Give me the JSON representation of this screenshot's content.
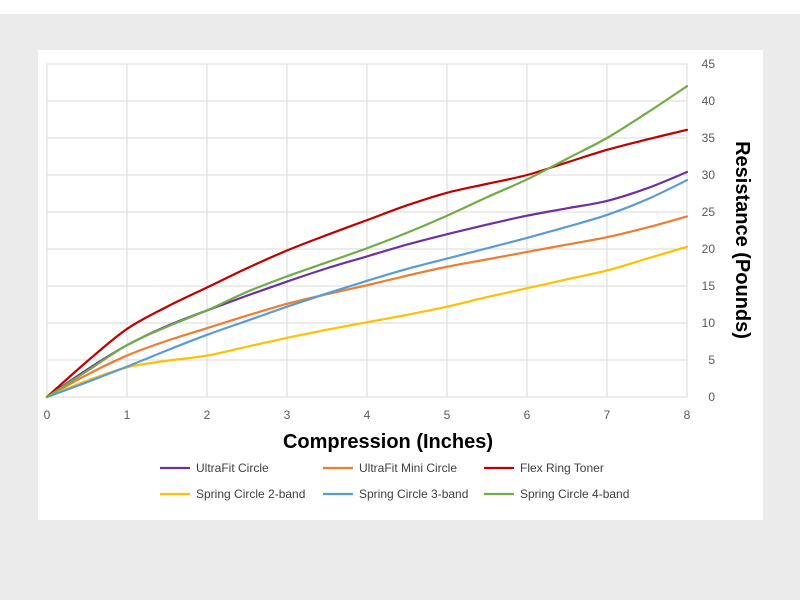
{
  "chart_data": {
    "type": "line",
    "title": "",
    "xlabel": "Compression (Inches)",
    "ylabel": "Resistance (Pounds)",
    "x": [
      0,
      0.5,
      1,
      1.5,
      2,
      2.5,
      3,
      3.5,
      4,
      4.5,
      5,
      5.5,
      6,
      6.5,
      7,
      7.5,
      8
    ],
    "xlim": [
      0,
      8
    ],
    "ylim": [
      0,
      45
    ],
    "x_ticks": [
      "0",
      "1",
      "2",
      "3",
      "4",
      "5",
      "6",
      "7",
      "8"
    ],
    "y_ticks": [
      "0",
      "5",
      "10",
      "15",
      "20",
      "25",
      "30",
      "35",
      "40",
      "45"
    ],
    "y_axis_side": "right",
    "grid": true,
    "legend_position": "bottom",
    "series": [
      {
        "name": "UltraFit Circle",
        "color": "#7030a0",
        "values": [
          0,
          3.7,
          7.0,
          9.6,
          11.7,
          13.7,
          15.6,
          17.4,
          19.0,
          20.6,
          22.0,
          23.3,
          24.5,
          25.5,
          26.5,
          28.2,
          30.4
        ]
      },
      {
        "name": "UltraFit Mini Circle",
        "color": "#ed7d31",
        "values": [
          0,
          3.0,
          5.6,
          7.6,
          9.3,
          11.0,
          12.6,
          13.9,
          15.1,
          16.4,
          17.6,
          18.6,
          19.6,
          20.6,
          21.6,
          22.9,
          24.4
        ]
      },
      {
        "name": "Flex Ring Toner",
        "color": "#c00000",
        "values": [
          0,
          4.8,
          9.2,
          12.2,
          14.8,
          17.4,
          19.8,
          21.9,
          23.9,
          25.9,
          27.6,
          28.8,
          30.0,
          31.7,
          33.4,
          34.8,
          36.1
        ]
      },
      {
        "name": "Spring Circle 2-band",
        "color": "#ffc000",
        "values": [
          0,
          2.2,
          4.0,
          4.9,
          5.6,
          6.8,
          8.0,
          9.1,
          10.1,
          11.1,
          12.2,
          13.5,
          14.7,
          15.9,
          17.1,
          18.7,
          20.3
        ]
      },
      {
        "name": "Spring Circle 3-band",
        "color": "#5b9bd5",
        "values": [
          0,
          2.0,
          4.1,
          6.3,
          8.4,
          10.3,
          12.2,
          14.0,
          15.7,
          17.3,
          18.7,
          20.1,
          21.5,
          23.0,
          24.6,
          26.7,
          29.3
        ]
      },
      {
        "name": "Spring Circle 4-band",
        "color": "#70ad47",
        "values": [
          0,
          3.5,
          7.0,
          9.5,
          11.7,
          14.2,
          16.3,
          18.2,
          20.1,
          22.2,
          24.5,
          27.0,
          29.4,
          32.2,
          35.0,
          38.4,
          42.0
        ]
      }
    ]
  }
}
